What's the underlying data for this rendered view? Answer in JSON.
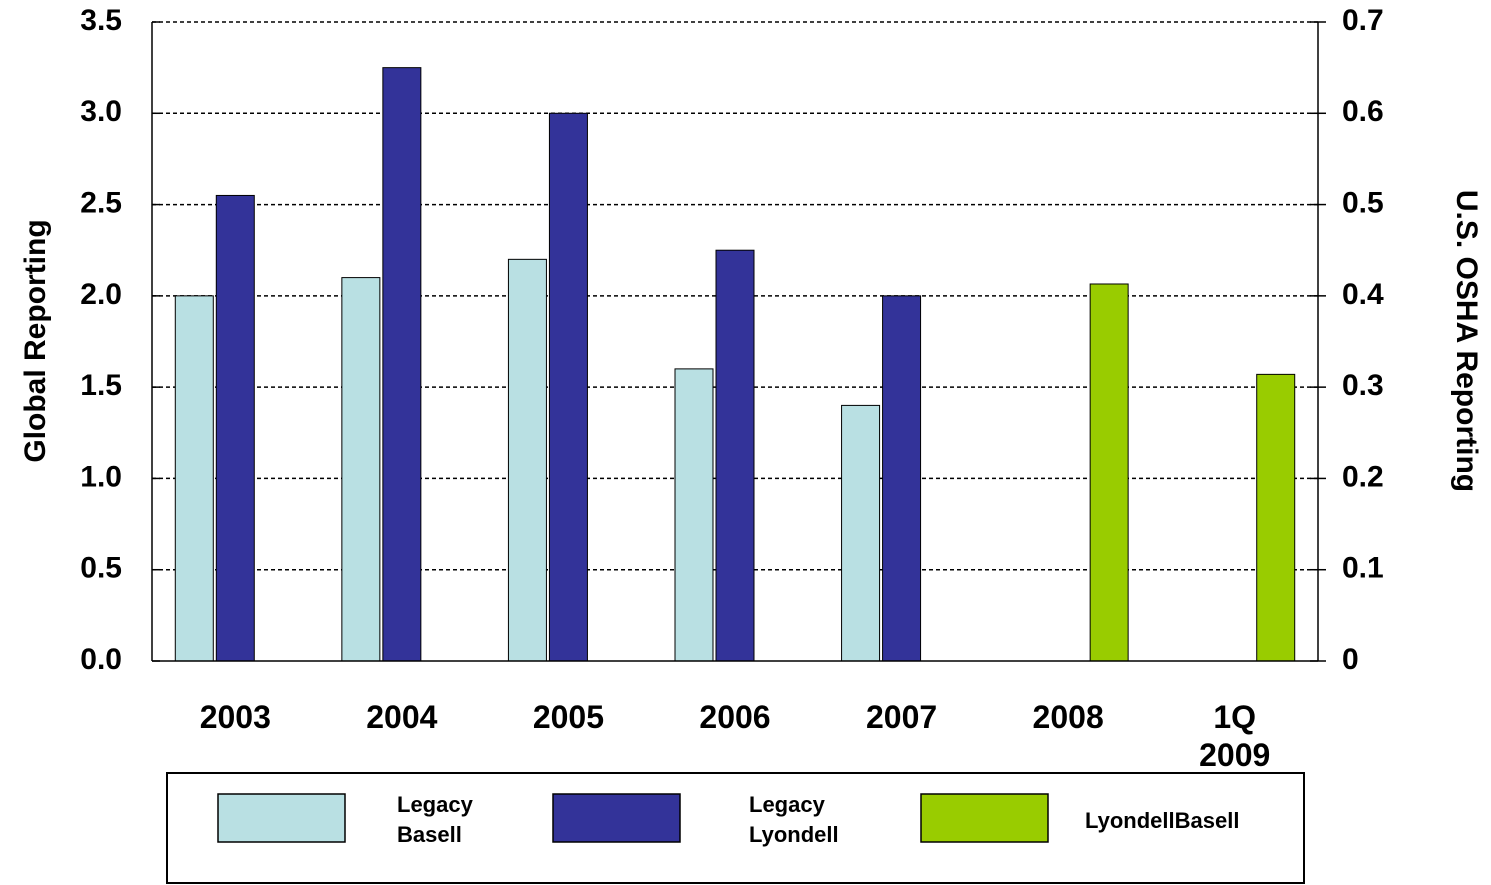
{
  "chart_data": {
    "type": "bar",
    "ylabel": "Global Reporting",
    "y2label": "U.S. OSHA Reporting",
    "categories": [
      "2003",
      "2004",
      "2005",
      "2006",
      "2007",
      "2008",
      "1Q 2009"
    ],
    "series": [
      {
        "name": "Legacy Basell",
        "color": "#b9e0e3",
        "values": [
          2.0,
          2.1,
          2.2,
          1.6,
          1.4,
          null,
          null
        ]
      },
      {
        "name": "Legacy Lyondell",
        "color": "#333399",
        "values": [
          2.55,
          3.25,
          3.0,
          2.25,
          2.0,
          null,
          null
        ]
      },
      {
        "name": "LyondellBasell",
        "color": "#99cc00",
        "axis": "y2",
        "values": [
          null,
          null,
          null,
          null,
          null,
          0.413,
          0.314
        ]
      }
    ],
    "ylim": [
      0,
      3.5
    ],
    "yticks": [
      {
        "value": 0,
        "label": "0.0"
      },
      0.5,
      {
        "value": 1,
        "label": "1.0"
      },
      1.5,
      {
        "value": 2,
        "label": "2.0"
      },
      2.5,
      {
        "value": 3,
        "label": "3.0"
      },
      3.5
    ],
    "y2lim": [
      0,
      0.7
    ],
    "y2ticks": [
      0,
      0.1,
      0.2,
      0.3,
      0.4,
      0.5,
      0.6,
      0.7
    ],
    "grid": true,
    "legend": "bottom"
  }
}
